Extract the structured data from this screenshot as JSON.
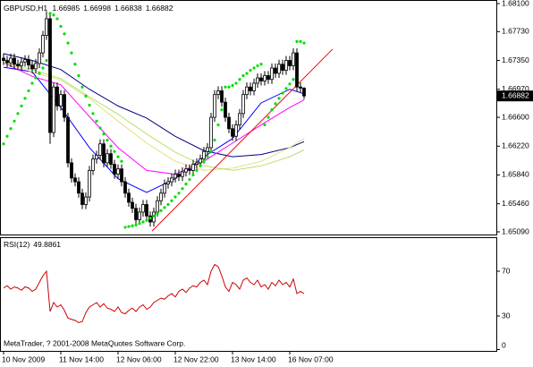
{
  "chart_data": [
    {
      "type": "candlestick",
      "title": "GBPUSD,H1",
      "xlim": [
        -1,
        138
      ],
      "xticks": [
        {
          "value": 0,
          "label": "10 Nov 2009"
        },
        {
          "value": 16,
          "label": "11 Nov 14:00"
        },
        {
          "value": 32,
          "label": "12 Nov 06:00"
        },
        {
          "value": 48,
          "label": "12 Nov 22:00"
        },
        {
          "value": 64,
          "label": "13 Nov 14:00"
        },
        {
          "value": 80,
          "label": "16 Nov 07:00"
        }
      ],
      "ylim": [
        1.6509,
        1.681
      ],
      "yticks": [
        {
          "value": 1.681,
          "label": "1.68100"
        },
        {
          "value": 1.6773,
          "label": "1.67730"
        },
        {
          "value": 1.6735,
          "label": "1.67350"
        },
        {
          "value": 1.6697,
          "label": "1.66970"
        },
        {
          "value": 1.666,
          "label": "1.66600"
        },
        {
          "value": 1.6622,
          "label": "1.66220"
        },
        {
          "value": 1.6584,
          "label": "1.65840"
        },
        {
          "value": 1.6546,
          "label": "1.65460"
        },
        {
          "value": 1.6509,
          "label": "1.65090"
        }
      ],
      "color_up": "#ffffff",
      "color_down": "#000000",
      "color_wick": "#000000",
      "open": [
        1.6738,
        1.6735,
        1.6732,
        1.6738,
        1.673,
        1.6728,
        1.6733,
        1.6736,
        1.6729,
        1.6724,
        1.6731,
        1.6745,
        1.6768,
        1.679,
        1.664,
        1.67,
        1.6675,
        1.669,
        1.666,
        1.66,
        1.658,
        1.6575,
        1.656,
        1.6545,
        1.6555,
        1.659,
        1.6605,
        1.661,
        1.6625,
        1.66,
        1.6612,
        1.6598,
        1.6585,
        1.6592,
        1.6575,
        1.656,
        1.6548,
        1.654,
        1.6525,
        1.6535,
        1.6545,
        1.653,
        1.6522,
        1.6535,
        1.655,
        1.656,
        1.6572,
        1.6575,
        1.658,
        1.6585,
        1.6582,
        1.6588,
        1.6592,
        1.659,
        1.6598,
        1.66,
        1.6605,
        1.6615,
        1.662,
        1.666,
        1.669,
        1.6695,
        1.668,
        1.666,
        1.6645,
        1.6635,
        1.665,
        1.6665,
        1.669,
        1.67,
        1.6695,
        1.6705,
        1.6712,
        1.6708,
        1.6715,
        1.671,
        1.6725,
        1.6718,
        1.673,
        1.6722,
        1.6735,
        1.6728,
        1.6745,
        1.67,
        1.66985
      ],
      "high": [
        1.6744,
        1.6741,
        1.6744,
        1.6744,
        1.6736,
        1.6739,
        1.6742,
        1.6742,
        1.6735,
        1.6737,
        1.6751,
        1.6774,
        1.68,
        1.6796,
        1.6706,
        1.6706,
        1.6696,
        1.6696,
        1.6666,
        1.6606,
        1.6586,
        1.6581,
        1.6566,
        1.6561,
        1.6596,
        1.6611,
        1.6616,
        1.6631,
        1.6631,
        1.6618,
        1.6618,
        1.6604,
        1.6598,
        1.6598,
        1.6581,
        1.6566,
        1.6554,
        1.6546,
        1.6541,
        1.6551,
        1.6551,
        1.6536,
        1.6541,
        1.6556,
        1.6566,
        1.6578,
        1.6581,
        1.6586,
        1.6591,
        1.6591,
        1.6594,
        1.6598,
        1.6598,
        1.6604,
        1.6606,
        1.6611,
        1.6621,
        1.6626,
        1.6666,
        1.6696,
        1.6701,
        1.6701,
        1.6686,
        1.6666,
        1.6651,
        1.6656,
        1.6671,
        1.6696,
        1.6706,
        1.6706,
        1.6711,
        1.6718,
        1.6718,
        1.6721,
        1.6721,
        1.6731,
        1.6731,
        1.6736,
        1.6736,
        1.6741,
        1.6741,
        1.6751,
        1.6751,
        1.6706,
        1.66998
      ],
      "low": [
        1.6729,
        1.6726,
        1.6726,
        1.6724,
        1.6722,
        1.6722,
        1.6727,
        1.6723,
        1.6718,
        1.6718,
        1.6725,
        1.6739,
        1.6762,
        1.6625,
        1.6634,
        1.6669,
        1.6669,
        1.6654,
        1.6594,
        1.6574,
        1.6569,
        1.6554,
        1.6539,
        1.6539,
        1.6549,
        1.6584,
        1.6599,
        1.6604,
        1.6594,
        1.6594,
        1.6592,
        1.6579,
        1.6579,
        1.6569,
        1.6554,
        1.6542,
        1.6534,
        1.6519,
        1.6519,
        1.6529,
        1.6524,
        1.6516,
        1.6516,
        1.6529,
        1.6544,
        1.6554,
        1.6566,
        1.6569,
        1.6574,
        1.6576,
        1.6576,
        1.6582,
        1.6584,
        1.6584,
        1.6592,
        1.6594,
        1.6599,
        1.6609,
        1.6614,
        1.6654,
        1.6684,
        1.6674,
        1.6654,
        1.6639,
        1.6629,
        1.6629,
        1.6644,
        1.6659,
        1.6684,
        1.6689,
        1.6689,
        1.6699,
        1.6702,
        1.6702,
        1.6704,
        1.6704,
        1.6712,
        1.6712,
        1.6716,
        1.6716,
        1.6722,
        1.6722,
        1.6694,
        1.6692,
        1.66838
      ],
      "close": [
        1.6735,
        1.6732,
        1.6738,
        1.673,
        1.6728,
        1.6733,
        1.6736,
        1.6729,
        1.6724,
        1.6731,
        1.6745,
        1.6768,
        1.679,
        1.664,
        1.67,
        1.6675,
        1.669,
        1.666,
        1.66,
        1.658,
        1.6575,
        1.656,
        1.6545,
        1.6555,
        1.659,
        1.6605,
        1.661,
        1.6625,
        1.66,
        1.6612,
        1.6598,
        1.6585,
        1.6592,
        1.6575,
        1.656,
        1.6548,
        1.654,
        1.6525,
        1.6535,
        1.6545,
        1.653,
        1.6522,
        1.6535,
        1.655,
        1.656,
        1.6572,
        1.6575,
        1.658,
        1.6585,
        1.6582,
        1.6588,
        1.6592,
        1.659,
        1.6598,
        1.66,
        1.6605,
        1.6615,
        1.662,
        1.666,
        1.669,
        1.6695,
        1.668,
        1.666,
        1.6645,
        1.6635,
        1.665,
        1.6665,
        1.669,
        1.67,
        1.6695,
        1.6705,
        1.6712,
        1.6708,
        1.6715,
        1.671,
        1.6725,
        1.6718,
        1.673,
        1.6722,
        1.6735,
        1.6728,
        1.6745,
        1.67,
        1.66985,
        1.66882
      ],
      "sar": {
        "color": "#00dd00",
        "values": [
          1.6625,
          1.6635,
          1.6645,
          1.6655,
          1.6665,
          1.6675,
          1.6685,
          1.6695,
          1.6705,
          1.6712,
          1.6718,
          1.6725,
          1.6735,
          1.6797,
          1.6795,
          1.679,
          1.678,
          1.677,
          1.6758,
          1.6745,
          1.673,
          1.6715,
          1.67,
          1.6688,
          1.6676,
          1.6665,
          1.6655,
          1.6646,
          1.6638,
          1.663,
          1.6622,
          1.6615,
          1.6608,
          1.6602,
          1.6515,
          1.6516,
          1.6517,
          1.6518,
          1.652,
          1.6522,
          1.6524,
          1.6527,
          1.653,
          1.6533,
          1.6537,
          1.6541,
          1.6545,
          1.655,
          1.6555,
          1.656,
          1.6566,
          1.6572,
          1.6578,
          1.6584,
          1.659,
          1.6596,
          1.6602,
          1.6608,
          1.6615,
          1.663,
          1.665,
          1.667,
          1.67,
          1.67,
          1.6702,
          1.6705,
          1.671,
          1.6715,
          1.6718,
          1.6722,
          1.6725,
          1.6728,
          1.673,
          1.665,
          1.666,
          1.667,
          1.6678,
          1.6685,
          1.6692,
          1.6698,
          1.6704,
          1.671,
          1.676,
          1.676,
          1.6758
        ]
      },
      "moving_averages": {
        "x": [
          0,
          8,
          16,
          24,
          32,
          40,
          48,
          56,
          64,
          72,
          80,
          84
        ],
        "series": [
          {
            "color": "#0000ff",
            "values": [
              1.6726,
              1.672,
              1.6673,
              1.662,
              1.6579,
              1.6561,
              1.6579,
              1.6608,
              1.6632,
              1.6679,
              1.6697,
              1.6691
            ]
          },
          {
            "color": "#000080",
            "values": [
              1.6744,
              1.6735,
              1.6723,
              1.6697,
              1.6675,
              1.6659,
              1.6635,
              1.6616,
              1.6608,
              1.6611,
              1.662,
              1.6628
            ]
          },
          {
            "color": "#ff00ff",
            "values": [
              1.6732,
              1.6714,
              1.6703,
              1.6661,
              1.662,
              1.659,
              1.6585,
              1.6602,
              1.6626,
              1.665,
              1.6673,
              1.6683
            ]
          },
          {
            "color": "#e0e080",
            "values": [
              1.6732,
              1.672,
              1.6709,
              1.6685,
              1.6655,
              1.6626,
              1.6602,
              1.659,
              1.6593,
              1.6602,
              1.662,
              1.6632
            ]
          },
          {
            "color": "#b8e070",
            "values": [
              1.6732,
              1.6723,
              1.6711,
              1.6687,
              1.6664,
              1.6638,
              1.6614,
              1.6596,
              1.659,
              1.6596,
              1.6608,
              1.6617
            ]
          }
        ]
      },
      "trendline": {
        "color": "#ff0000",
        "x": [
          41.5,
          92
        ],
        "values": [
          1.651,
          1.675
        ]
      },
      "footer": "MetaTrader, ? 2001-2008 MetaQuotes Software Corp."
    },
    {
      "type": "line",
      "title": "RSI(12)",
      "color": "#cc0000",
      "ylim": [
        0,
        100
      ],
      "yticks": [
        70,
        30,
        0
      ],
      "values": [
        55,
        57,
        54,
        56,
        55,
        53,
        56,
        55,
        52,
        54,
        60,
        66,
        70,
        34,
        42,
        38,
        40,
        35,
        28,
        27,
        26,
        24,
        25,
        33,
        38,
        40,
        42,
        38,
        41,
        37,
        36,
        34,
        38,
        33,
        32,
        35,
        37,
        34,
        38,
        40,
        36,
        38,
        42,
        44,
        46,
        45,
        48,
        50,
        47,
        52,
        54,
        51,
        55,
        57,
        56,
        60,
        62,
        58,
        70,
        76,
        74,
        66,
        56,
        52,
        60,
        58,
        54,
        62,
        64,
        60,
        58,
        62,
        56,
        58,
        54,
        60,
        57,
        62,
        58,
        60,
        56,
        63,
        50,
        52,
        49.8861
      ]
    }
  ]
}
